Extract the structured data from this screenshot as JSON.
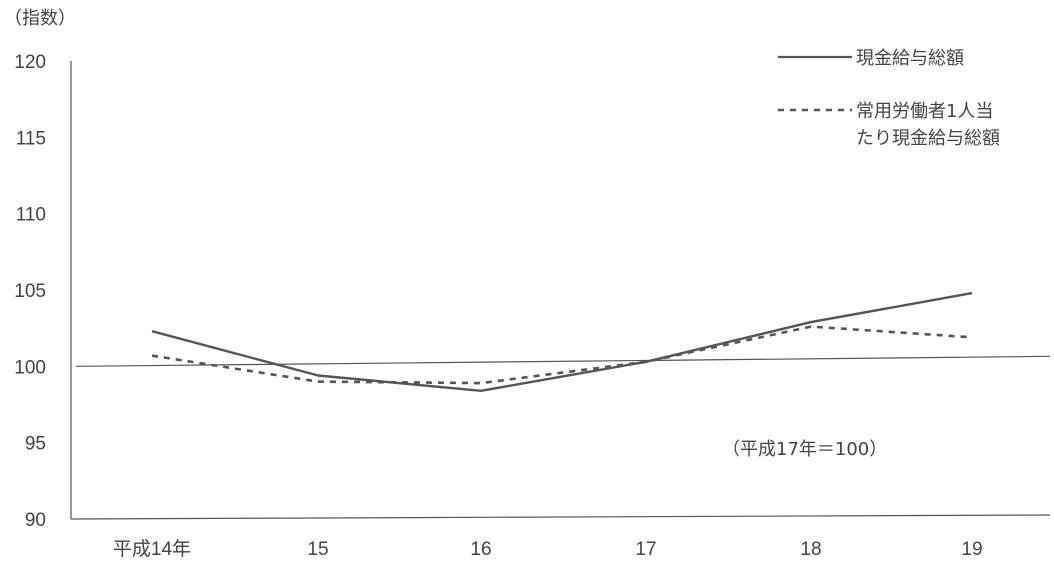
{
  "chart_data": {
    "type": "line",
    "ylabel": "（指数）",
    "ylim": [
      90,
      120
    ],
    "yticks": [
      "120",
      "115",
      "110",
      "105",
      "100",
      "95",
      "90"
    ],
    "ytick_values": [
      120,
      115,
      110,
      105,
      100,
      95,
      90
    ],
    "categories": [
      "平成14年",
      "15",
      "16",
      "17",
      "18",
      "19"
    ],
    "series": [
      {
        "name": "現金給与総額",
        "style": "solid",
        "color": "#555555",
        "values": [
          102.3,
          99.4,
          98.4,
          100.3,
          102.9,
          104.8
        ]
      },
      {
        "name": "常用労働者1人当たり現金給与総額",
        "style": "dashed",
        "color": "#555555",
        "values": [
          100.7,
          99.0,
          98.9,
          100.3,
          102.6,
          101.9
        ]
      }
    ],
    "legend": {
      "position": "top-right",
      "solid_label": "現金給与総額",
      "dashed_label_line1": "常用労働者1人当",
      "dashed_label_line2": "たり現金給与総額"
    },
    "annotation": "（平成17年＝100）",
    "grid": false
  }
}
